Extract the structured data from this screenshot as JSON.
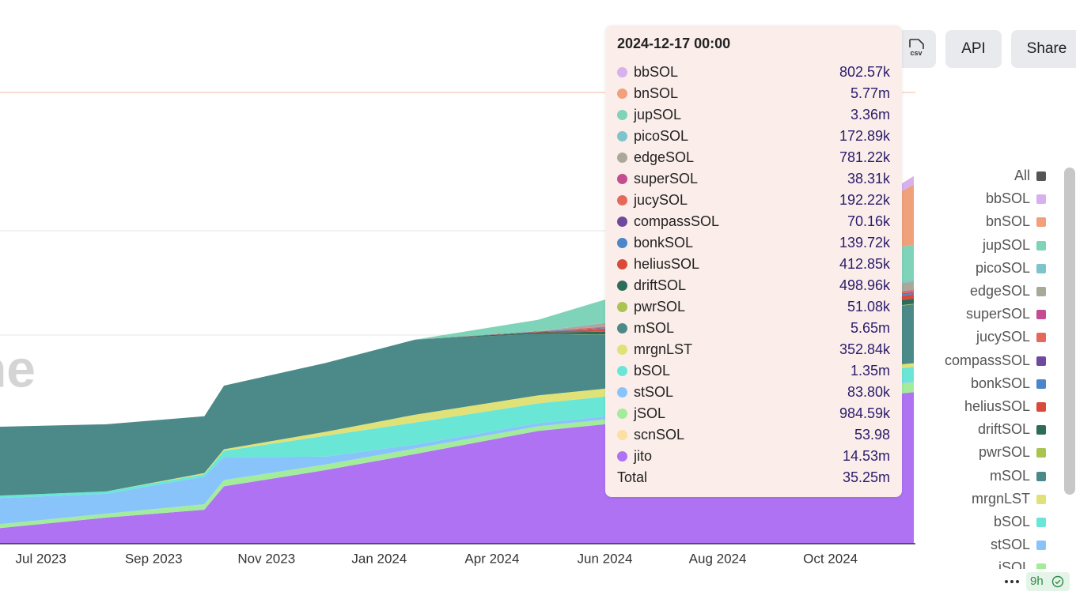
{
  "header": {
    "csv_button": "csv",
    "api_button": "API",
    "share_button": "Share"
  },
  "chart_data": {
    "type": "area",
    "stacked": true,
    "watermark": "ne",
    "x": [
      "2023-06-07",
      "2023-08-11",
      "2023-10-10",
      "2023-10-22",
      "2023-12-23",
      "2024-02-16",
      "2024-05-01",
      "2024-06-20",
      "2024-10-17",
      "2024-12-17"
    ],
    "xlim": [
      "2023-06-07",
      "2024-12-17"
    ],
    "xticks": [
      {
        "value": "2023-07-02",
        "label": "Jul 2023"
      },
      {
        "value": "2023-09-09",
        "label": "Sep 2023"
      },
      {
        "value": "2023-11-17",
        "label": "Nov 2023"
      },
      {
        "value": "2024-01-25",
        "label": "Jan 2024"
      },
      {
        "value": "2024-04-03",
        "label": "Apr 2024"
      },
      {
        "value": "2024-06-11",
        "label": "Jun 2024"
      },
      {
        "value": "2024-08-19",
        "label": "Aug 2024"
      },
      {
        "value": "2024-10-27",
        "label": "Oct 2024"
      }
    ],
    "ylim": [
      0,
      45000000
    ],
    "yticks": [
      20000000,
      30000000
    ],
    "grid": true,
    "legend_all": "All",
    "series": [
      {
        "name": "bbSOL",
        "color": "#d7b0ee",
        "values": [
          0,
          0,
          0,
          0,
          0,
          0,
          0,
          0,
          300000,
          802570
        ],
        "value_labels": [
          null,
          null,
          null,
          null,
          null,
          null,
          null,
          null,
          null,
          "802.57k"
        ]
      },
      {
        "name": "bnSOL",
        "color": "#f0a07a",
        "values": [
          0,
          0,
          0,
          0,
          0,
          0,
          0,
          0,
          2000000,
          5770000
        ],
        "value_labels": [
          null,
          null,
          null,
          null,
          null,
          null,
          null,
          null,
          null,
          "5.77m"
        ]
      },
      {
        "name": "jupSOL",
        "color": "#7fd3b8",
        "values": [
          0,
          0,
          0,
          0,
          0,
          0,
          1100000,
          2400000,
          3000000,
          3360000
        ],
        "value_labels": [
          null,
          null,
          null,
          null,
          null,
          null,
          null,
          null,
          null,
          "3.36m"
        ]
      },
      {
        "name": "picoSOL",
        "color": "#7dc4cc",
        "values": [
          0,
          0,
          0,
          0,
          0,
          0,
          0,
          100000,
          170000,
          172890
        ],
        "value_labels": [
          null,
          null,
          null,
          null,
          null,
          null,
          null,
          null,
          null,
          "172.89k"
        ]
      },
      {
        "name": "edgeSOL",
        "color": "#a9a99a",
        "values": [
          0,
          0,
          0,
          0,
          0,
          0,
          0,
          400000,
          700000,
          781220
        ],
        "value_labels": [
          null,
          null,
          null,
          null,
          null,
          null,
          null,
          null,
          null,
          "781.22k"
        ]
      },
      {
        "name": "superSOL",
        "color": "#c44d8f",
        "values": [
          0,
          0,
          0,
          0,
          0,
          0,
          0,
          30000,
          40000,
          38310
        ],
        "value_labels": [
          null,
          null,
          null,
          null,
          null,
          null,
          null,
          null,
          null,
          "38.31k"
        ]
      },
      {
        "name": "jucySOL",
        "color": "#e5695a",
        "values": [
          0,
          0,
          0,
          0,
          0,
          0,
          0,
          150000,
          190000,
          192220
        ],
        "value_labels": [
          null,
          null,
          null,
          null,
          null,
          null,
          null,
          null,
          null,
          "192.22k"
        ]
      },
      {
        "name": "compassSOL",
        "color": "#6e4a9e",
        "values": [
          0,
          0,
          0,
          0,
          0,
          0,
          0,
          50000,
          70000,
          70160
        ],
        "value_labels": [
          null,
          null,
          null,
          null,
          null,
          null,
          null,
          null,
          null,
          "70.16k"
        ]
      },
      {
        "name": "bonkSOL",
        "color": "#4a86c8",
        "values": [
          0,
          0,
          0,
          0,
          0,
          0,
          50000,
          100000,
          130000,
          139720
        ],
        "value_labels": [
          null,
          null,
          null,
          null,
          null,
          null,
          null,
          null,
          null,
          "139.72k"
        ]
      },
      {
        "name": "heliusSOL",
        "color": "#d94a3a",
        "values": [
          0,
          0,
          0,
          0,
          0,
          0,
          50000,
          250000,
          350000,
          412850
        ],
        "value_labels": [
          null,
          null,
          null,
          null,
          null,
          null,
          null,
          null,
          null,
          "412.85k"
        ]
      },
      {
        "name": "driftSOL",
        "color": "#2f6b5b",
        "values": [
          0,
          0,
          0,
          0,
          0,
          0,
          150000,
          300000,
          450000,
          498960
        ],
        "value_labels": [
          null,
          null,
          null,
          null,
          null,
          null,
          null,
          null,
          null,
          "498.96k"
        ]
      },
      {
        "name": "pwrSOL",
        "color": "#a9c450",
        "values": [
          0,
          0,
          0,
          0,
          0,
          0,
          0,
          30000,
          50000,
          51080
        ],
        "value_labels": [
          null,
          null,
          null,
          null,
          null,
          null,
          null,
          null,
          null,
          "51.08k"
        ]
      },
      {
        "name": "mSOL",
        "color": "#4b8a88",
        "values": [
          6600000,
          6440000,
          5450000,
          6100000,
          6600000,
          7200000,
          5900000,
          5000000,
          5400000,
          5650000
        ],
        "value_labels": [
          null,
          null,
          null,
          null,
          null,
          null,
          null,
          null,
          null,
          "5.65m"
        ]
      },
      {
        "name": "mrgnLST",
        "color": "#e0e278",
        "values": [
          0,
          0,
          100000,
          150000,
          380000,
          760000,
          760000,
          760000,
          500000,
          352840
        ],
        "value_labels": [
          null,
          null,
          null,
          null,
          null,
          null,
          null,
          null,
          null,
          "352.84k"
        ]
      },
      {
        "name": "bSOL",
        "color": "#6ae6d6",
        "values": [
          230000,
          230000,
          230000,
          600000,
          2000000,
          2100000,
          1900000,
          1900000,
          1500000,
          1350000
        ],
        "value_labels": [
          null,
          null,
          null,
          null,
          null,
          null,
          null,
          null,
          null,
          "1.35m"
        ]
      },
      {
        "name": "stSOL",
        "color": "#88c4fa",
        "values": [
          2500000,
          1900000,
          2650000,
          2200000,
          760000,
          380000,
          300000,
          300000,
          150000,
          83800
        ],
        "value_labels": [
          null,
          null,
          null,
          null,
          null,
          null,
          null,
          null,
          null,
          "83.80k"
        ]
      },
      {
        "name": "jSOL",
        "color": "#a3ec9b",
        "values": [
          380000,
          380000,
          530000,
          600000,
          530000,
          530000,
          450000,
          450000,
          800000,
          984590
        ],
        "value_labels": [
          null,
          null,
          null,
          null,
          null,
          null,
          null,
          null,
          null,
          "984.59k"
        ]
      },
      {
        "name": "scnSOL",
        "color": "#fbdfa3",
        "values": [
          0,
          0,
          0,
          0,
          0,
          0,
          0,
          0,
          0,
          53.98
        ],
        "value_labels": [
          null,
          null,
          null,
          null,
          null,
          null,
          null,
          null,
          null,
          "53.98"
        ]
      },
      {
        "name": "jito",
        "color": "#ae72f2",
        "values": [
          1500000,
          2500000,
          3260000,
          5500000,
          7050000,
          8600000,
          10800000,
          11600000,
          13500000,
          14530000
        ],
        "value_labels": [
          null,
          null,
          null,
          null,
          null,
          null,
          null,
          null,
          null,
          "14.53m"
        ]
      }
    ],
    "tooltip": {
      "title": "2024-12-17 00:00",
      "total_label": "Total",
      "total_value_label": "35.25m"
    }
  },
  "footer": {
    "freshness": "9h"
  }
}
